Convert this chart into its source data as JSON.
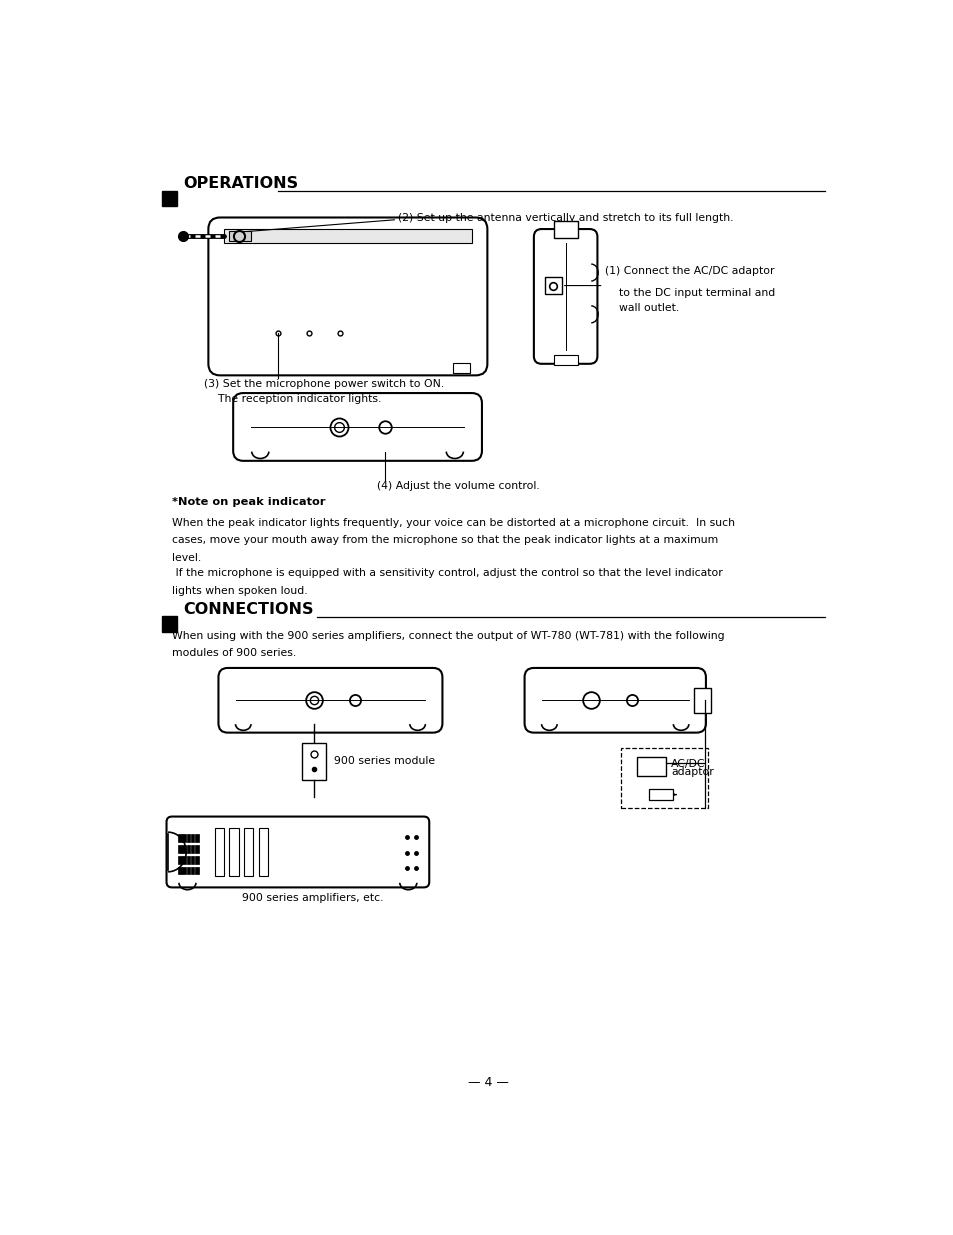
{
  "bg_color": "#ffffff",
  "text_color": "#000000",
  "page_width": 9.54,
  "page_height": 12.35,
  "operations_header": "OPERATIONS",
  "connections_header": "CONNECTIONS",
  "note_header": "*Note on peak indicator",
  "note_text1": "When the peak indicator lights frequently, your voice can be distorted at a microphone circuit.  In such",
  "note_text2": "cases, move your mouth away from the microphone so that the peak indicator lights at a maximum",
  "note_text3": "level.",
  "note_text4": " If the microphone is equipped with a sensitivity control, adjust the control so that the level indicator",
  "note_text5": "lights when spoken loud.",
  "conn_text1": "When using with the 900 series amplifiers, connect the output of WT-780 (WT-781) with the following",
  "conn_text2": "modules of 900 series.",
  "label_antenna": "(2) Set up the antenna vertically and stretch to its full length.",
  "label_switch_1": "(3) Set the microphone power switch to ON.",
  "label_switch_2": "    The reception indicator lights.",
  "label_volume": "(4) Adjust the volume control.",
  "label_900module": "900 series module",
  "label_900amp": "900 series amplifiers, etc.",
  "label_acdapt_1": "AC/DC",
  "label_acdapt_2": "adaptor",
  "label_acdc_1": "(1) Connect the AC/DC adaptor",
  "label_acdc_2": "    to the DC input terminal and",
  "label_acdc_3": "    wall outlet.",
  "page_number": "— 4 —"
}
